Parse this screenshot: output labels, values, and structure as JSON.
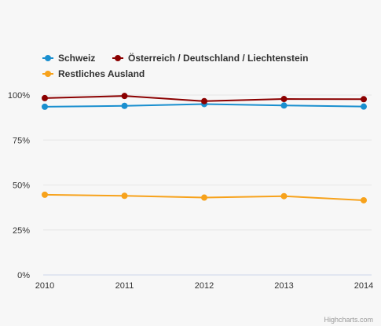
{
  "chart_data": {
    "type": "line",
    "categories": [
      "2010",
      "2011",
      "2012",
      "2013",
      "2014"
    ],
    "series": [
      {
        "name": "Schweiz",
        "values": [
          93.5,
          94.0,
          95.0,
          94.2,
          93.6
        ],
        "color": "#1a8fcf"
      },
      {
        "name": "Österreich / Deutschland / Liechtenstein",
        "values": [
          98.3,
          99.5,
          96.6,
          97.8,
          97.7
        ],
        "color": "#8b0000"
      },
      {
        "name": "Restliches Ausland",
        "values": [
          44.6,
          44.0,
          43.0,
          43.8,
          41.5
        ],
        "color": "#f7a21b"
      }
    ],
    "y_ticks": [
      "0%",
      "25%",
      "50%",
      "75%",
      "100%"
    ],
    "ylim": [
      0,
      100
    ],
    "title": "",
    "xlabel": "",
    "ylabel": "",
    "grid": true,
    "legend_placement": "top-left"
  },
  "credits": "Highcharts.com"
}
